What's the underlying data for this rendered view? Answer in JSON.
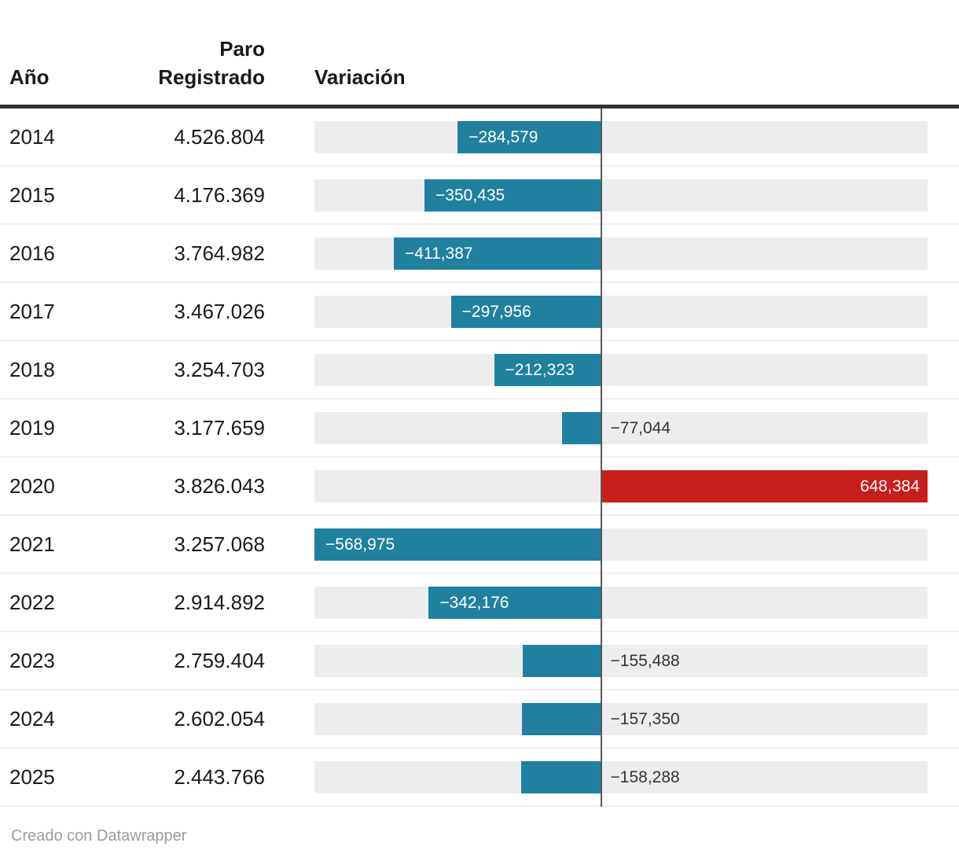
{
  "header": {
    "col_year": "Año",
    "col_paro_line1": "Paro",
    "col_paro_line2": "Registrado",
    "col_variacion": "Variación"
  },
  "rows": [
    {
      "year": "2014",
      "paro": "4.526.804",
      "variation_value": -284579,
      "variation_label": "−284,579",
      "label_placement": "inside"
    },
    {
      "year": "2015",
      "paro": "4.176.369",
      "variation_value": -350435,
      "variation_label": "−350,435",
      "label_placement": "inside"
    },
    {
      "year": "2016",
      "paro": "3.764.982",
      "variation_value": -411387,
      "variation_label": "−411,387",
      "label_placement": "inside"
    },
    {
      "year": "2017",
      "paro": "3.467.026",
      "variation_value": -297956,
      "variation_label": "−297,956",
      "label_placement": "inside"
    },
    {
      "year": "2018",
      "paro": "3.254.703",
      "variation_value": -212323,
      "variation_label": "−212,323",
      "label_placement": "inside"
    },
    {
      "year": "2019",
      "paro": "3.177.659",
      "variation_value": -77044,
      "variation_label": "−77,044",
      "label_placement": "outside"
    },
    {
      "year": "2020",
      "paro": "3.826.043",
      "variation_value": 648384,
      "variation_label": "648,384",
      "label_placement": "inside"
    },
    {
      "year": "2021",
      "paro": "3.257.068",
      "variation_value": -568975,
      "variation_label": "−568,975",
      "label_placement": "inside"
    },
    {
      "year": "2022",
      "paro": "2.914.892",
      "variation_value": -342176,
      "variation_label": "−342,176",
      "label_placement": "inside"
    },
    {
      "year": "2023",
      "paro": "2.759.404",
      "variation_value": -155488,
      "variation_label": "−155,488",
      "label_placement": "outside"
    },
    {
      "year": "2024",
      "paro": "2.602.054",
      "variation_value": -157350,
      "variation_label": "−157,350",
      "label_placement": "outside"
    },
    {
      "year": "2025",
      "paro": "2.443.766",
      "variation_value": -158288,
      "variation_label": "−158,288",
      "label_placement": "outside"
    }
  ],
  "axis": {
    "min": -568975,
    "max": 648384
  },
  "colors": {
    "negative_bar": "#2080a0",
    "positive_bar": "#c71e1d",
    "track": "#ededed",
    "axis_line": "#58585a",
    "header_rule": "#333333",
    "text": "#1a1a1a",
    "outside_label": "#333333",
    "footer_text": "#9c9c9c"
  },
  "footer": {
    "credit": "Creado con Datawrapper"
  },
  "chart_data": {
    "type": "bar",
    "orientation": "horizontal",
    "categories": [
      "2014",
      "2015",
      "2016",
      "2017",
      "2018",
      "2019",
      "2020",
      "2021",
      "2022",
      "2023",
      "2024",
      "2025"
    ],
    "series": [
      {
        "name": "Paro Registrado",
        "values": [
          4526804,
          4176369,
          3764982,
          3467026,
          3254703,
          3177659,
          3826043,
          3257068,
          2914892,
          2759404,
          2602054,
          2443766
        ]
      },
      {
        "name": "Variación",
        "values": [
          -284579,
          -350435,
          -411387,
          -297956,
          -212323,
          -77044,
          648384,
          -568975,
          -342176,
          -155488,
          -157350,
          -158288
        ]
      }
    ],
    "title": "",
    "xlabel": "Variación",
    "ylabel": "Año",
    "xlim": [
      -568975,
      648384
    ],
    "grid": false,
    "legend_position": "none",
    "negative_color": "#2080a0",
    "positive_color": "#c71e1d"
  }
}
